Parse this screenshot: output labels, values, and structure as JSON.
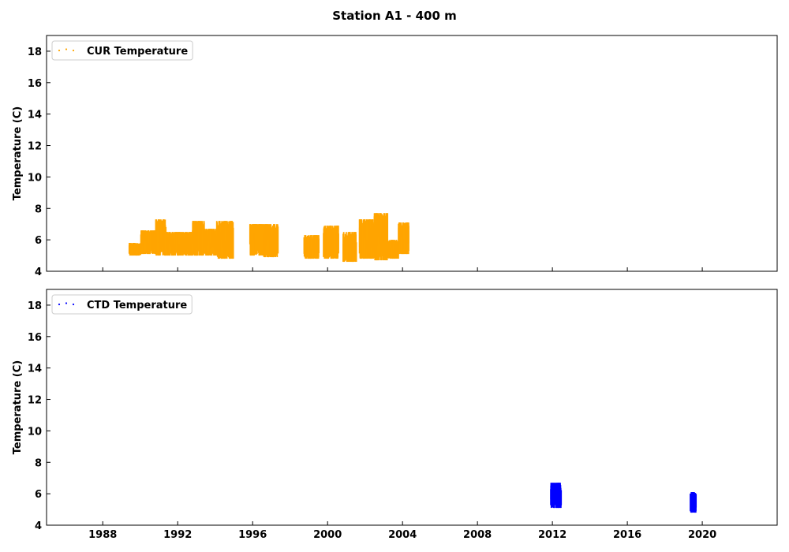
{
  "figure": {
    "title": "Station A1 - 400 m"
  },
  "chart_data": [
    {
      "type": "scatter",
      "ylabel": "Temperature (C)",
      "ylim": [
        4,
        19
      ],
      "xlim": [
        "1985-01-01",
        "2023-12-31"
      ],
      "yticks": [
        4,
        6,
        8,
        10,
        12,
        14,
        16,
        18
      ],
      "xticks": [
        "1988",
        "1992",
        "1996",
        "2000",
        "2004",
        "2008",
        "2012",
        "2016",
        "2020"
      ],
      "x_tick_labels_visible": false,
      "legend": {
        "label": "CUR Temperature",
        "position": "top-left"
      },
      "color": "#ffa500",
      "segments": [
        {
          "start": "1989-06-01",
          "end": "1990-01-15",
          "low": 5.0,
          "high": 5.8
        },
        {
          "start": "1990-01-15",
          "end": "1990-11-01",
          "low": 5.1,
          "high": 6.6
        },
        {
          "start": "1990-11-01",
          "end": "1991-05-15",
          "low": 5.0,
          "high": 7.3
        },
        {
          "start": "1991-05-15",
          "end": "1992-10-15",
          "low": 5.0,
          "high": 6.5
        },
        {
          "start": "1992-10-15",
          "end": "1993-06-01",
          "low": 5.0,
          "high": 7.2
        },
        {
          "start": "1993-06-01",
          "end": "1994-02-01",
          "low": 5.0,
          "high": 6.7
        },
        {
          "start": "1994-02-01",
          "end": "1994-12-20",
          "low": 4.8,
          "high": 7.2
        },
        {
          "start": "1995-11-10",
          "end": "1996-08-01",
          "low": 5.0,
          "high": 7.0
        },
        {
          "start": "1996-08-01",
          "end": "1997-05-10",
          "low": 4.9,
          "high": 7.0
        },
        {
          "start": "1998-10-01",
          "end": "1999-07-15",
          "low": 4.8,
          "high": 6.3
        },
        {
          "start": "1999-10-15",
          "end": "2000-08-01",
          "low": 4.8,
          "high": 6.9
        },
        {
          "start": "2000-11-01",
          "end": "2001-07-15",
          "low": 4.6,
          "high": 6.5
        },
        {
          "start": "2001-09-15",
          "end": "2002-07-01",
          "low": 4.8,
          "high": 7.3
        },
        {
          "start": "2002-07-01",
          "end": "2003-03-15",
          "low": 4.7,
          "high": 7.7
        },
        {
          "start": "2003-03-15",
          "end": "2003-10-15",
          "low": 4.8,
          "high": 6.0
        },
        {
          "start": "2003-10-15",
          "end": "2004-05-01",
          "low": 5.1,
          "high": 7.1
        }
      ]
    },
    {
      "type": "scatter",
      "ylabel": "Temperature (C)",
      "ylim": [
        4,
        19
      ],
      "xlim": [
        "1985-01-01",
        "2023-12-31"
      ],
      "yticks": [
        4,
        6,
        8,
        10,
        12,
        14,
        16,
        18
      ],
      "xticks": [
        "1988",
        "1992",
        "1996",
        "2000",
        "2004",
        "2008",
        "2012",
        "2016",
        "2020"
      ],
      "x_tick_labels_visible": true,
      "legend": {
        "label": "CTD Temperature",
        "position": "top-left"
      },
      "color": "#0000ff",
      "segments": [
        {
          "start": "2011-12-01",
          "end": "2012-06-20",
          "low": 5.1,
          "high": 6.7
        },
        {
          "start": "2019-05-15",
          "end": "2019-09-01",
          "low": 4.8,
          "high": 6.1
        }
      ]
    }
  ]
}
